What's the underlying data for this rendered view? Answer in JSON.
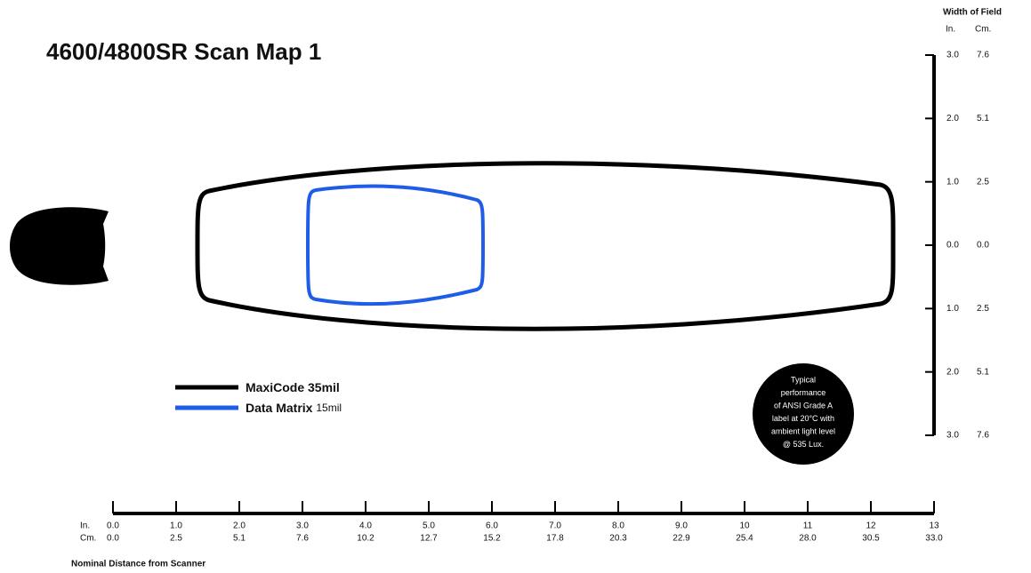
{
  "title": "4600/4800SR Scan Map 1",
  "width_of_field": {
    "title": "Width of Field",
    "units": [
      "In.",
      "Cm."
    ],
    "ticks": [
      [
        "3.0",
        "7.6"
      ],
      [
        "2.0",
        "5.1"
      ],
      [
        "1.0",
        "2.5"
      ],
      [
        "0.0",
        "0.0"
      ],
      [
        "1.0",
        "2.5"
      ],
      [
        "2.0",
        "5.1"
      ],
      [
        "3.0",
        "7.6"
      ]
    ]
  },
  "distance": {
    "title": "Nominal Distance from Scanner",
    "units": [
      "In.",
      "Cm."
    ],
    "inches": [
      "0.0",
      "1.0",
      "2.0",
      "3.0",
      "4.0",
      "5.0",
      "6.0",
      "7.0",
      "8.0",
      "9.0",
      "10",
      "11",
      "12",
      "13"
    ],
    "cm": [
      "0.0",
      "2.5",
      "5.1",
      "7.6",
      "10.2",
      "12.7",
      "15.2",
      "17.8",
      "20.3",
      "22.9",
      "25.4",
      "28.0",
      "30.5",
      "33.0"
    ]
  },
  "legend": [
    {
      "name": "MaxiCode",
      "detail": "35mil"
    },
    {
      "name": "Data Matrix",
      "detail": "15mil"
    }
  ],
  "note": [
    "Typical",
    "performance",
    "of ANSI Grade A",
    "label at 20°C with",
    "ambient light level",
    "@ 535 Lux."
  ]
}
